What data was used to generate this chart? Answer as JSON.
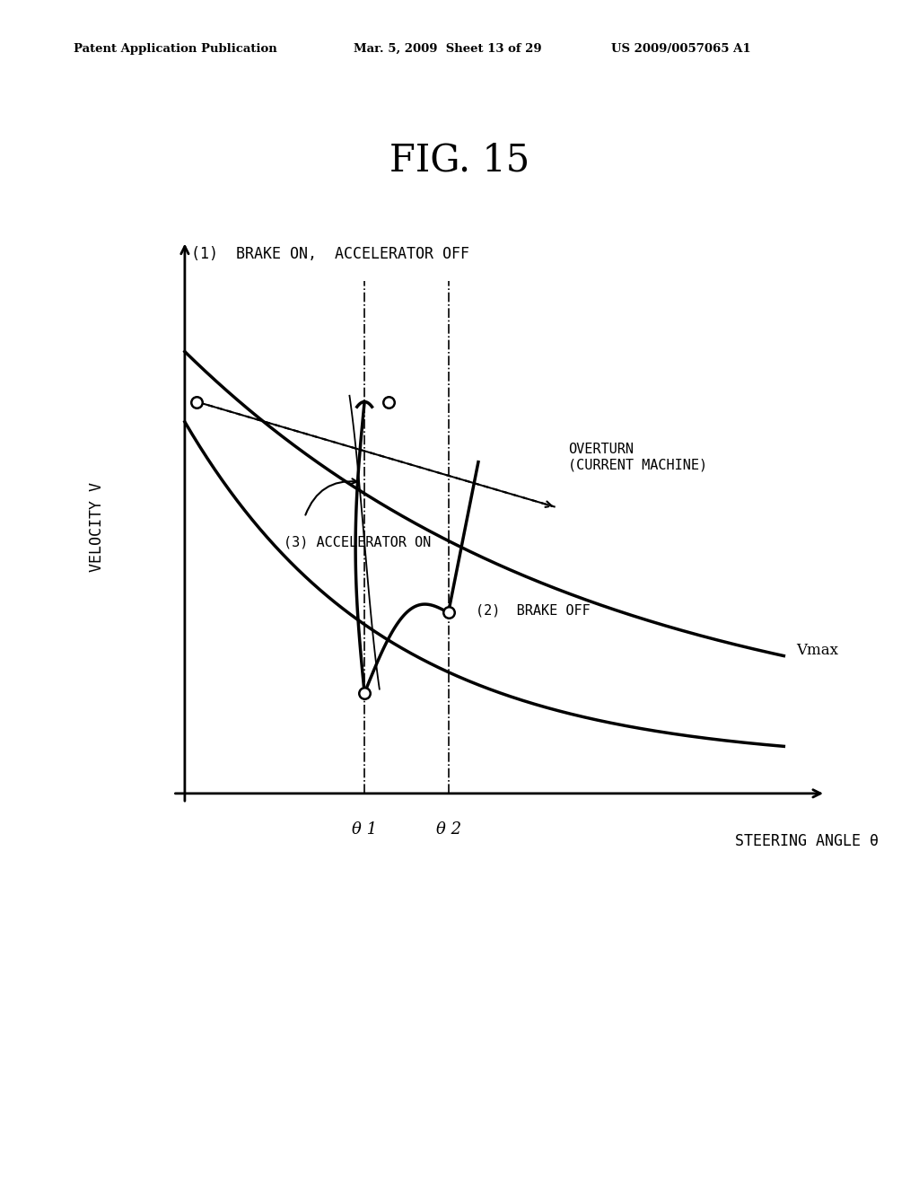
{
  "title": "FIG. 15",
  "header_left": "Patent Application Publication",
  "header_center": "Mar. 5, 2009  Sheet 13 of 29",
  "header_right": "US 2009/0057065 A1",
  "ylabel": "VELOCITY V",
  "xlabel": "STEERING ANGLE θ",
  "label_theta1": "θ 1",
  "label_theta2": "θ 2",
  "label_vmax": "Vmax",
  "label_overturn": "OVERTURN\n(CURRENT MACHINE)",
  "label_brake_on": "(1)  BRAKE ON,  ACCELERATOR OFF",
  "label_accel_on": "(3) ACCELERATOR ON",
  "label_brake_off": "(2)  BRAKE OFF",
  "bg_color": "#ffffff",
  "line_color": "#000000",
  "theta1": 0.3,
  "theta2": 0.44
}
